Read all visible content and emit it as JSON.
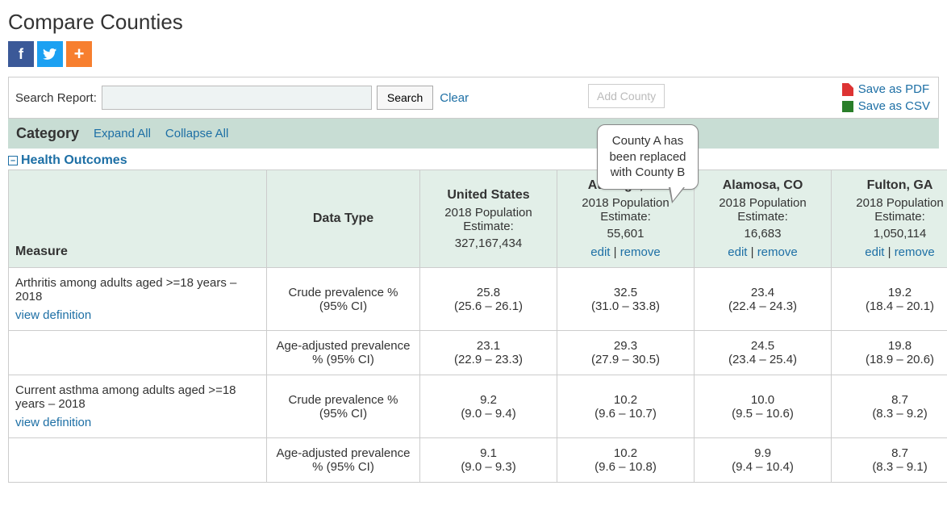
{
  "title": "Compare Counties",
  "search": {
    "label": "Search Report:",
    "button": "Search",
    "clear": "Clear",
    "value": ""
  },
  "addCounty": "Add County",
  "saveLinks": {
    "pdf": "Save as PDF",
    "csv": "Save as CSV"
  },
  "categoryBar": {
    "label": "Category",
    "expand": "Expand All",
    "collapse": "Collapse All"
  },
  "section": {
    "title": "Health Outcomes",
    "toggle": "–"
  },
  "callout": "County A has been replaced with County B",
  "headers": {
    "measure": "Measure",
    "dataType": "Data Type",
    "populationLabel": "2018 Population Estimate:",
    "editLabel": "edit",
    "removeLabel": "remove",
    "sep": " | "
  },
  "columns": [
    {
      "name": "United States",
      "population": "327,167,434",
      "editable": false
    },
    {
      "name": "Autauga, AL",
      "population": "55,601",
      "editable": true
    },
    {
      "name": "Alamosa, CO",
      "population": "16,683",
      "editable": true
    },
    {
      "name": "Fulton, GA",
      "population": "1,050,114",
      "editable": true
    }
  ],
  "dataTypes": {
    "crude": "Crude prevalence % (95% CI)",
    "adjusted": "Age-adjusted prevalence % (95% CI)"
  },
  "viewDefinition": "view definition",
  "measures": [
    {
      "label": "Arthritis among adults aged >=18 years – 2018",
      "rows": [
        {
          "type": "crude",
          "values": [
            {
              "v": "25.8",
              "ci": "(25.6 – 26.1)"
            },
            {
              "v": "32.5",
              "ci": "(31.0 – 33.8)"
            },
            {
              "v": "23.4",
              "ci": "(22.4 – 24.3)"
            },
            {
              "v": "19.2",
              "ci": "(18.4 – 20.1)"
            }
          ]
        },
        {
          "type": "adjusted",
          "values": [
            {
              "v": "23.1",
              "ci": "(22.9 – 23.3)"
            },
            {
              "v": "29.3",
              "ci": "(27.9 – 30.5)"
            },
            {
              "v": "24.5",
              "ci": "(23.4 – 25.4)"
            },
            {
              "v": "19.8",
              "ci": "(18.9 – 20.6)"
            }
          ]
        }
      ]
    },
    {
      "label": "Current asthma among adults aged >=18 years – 2018",
      "rows": [
        {
          "type": "crude",
          "values": [
            {
              "v": "9.2",
              "ci": "(9.0 – 9.4)"
            },
            {
              "v": "10.2",
              "ci": "(9.6 – 10.7)"
            },
            {
              "v": "10.0",
              "ci": "(9.5 – 10.6)"
            },
            {
              "v": "8.7",
              "ci": "(8.3 – 9.2)"
            }
          ]
        },
        {
          "type": "adjusted",
          "values": [
            {
              "v": "9.1",
              "ci": "(9.0 – 9.3)"
            },
            {
              "v": "10.2",
              "ci": "(9.6 – 10.8)"
            },
            {
              "v": "9.9",
              "ci": "(9.4 – 10.4)"
            },
            {
              "v": "8.7",
              "ci": "(8.3 – 9.1)"
            }
          ]
        }
      ]
    }
  ]
}
